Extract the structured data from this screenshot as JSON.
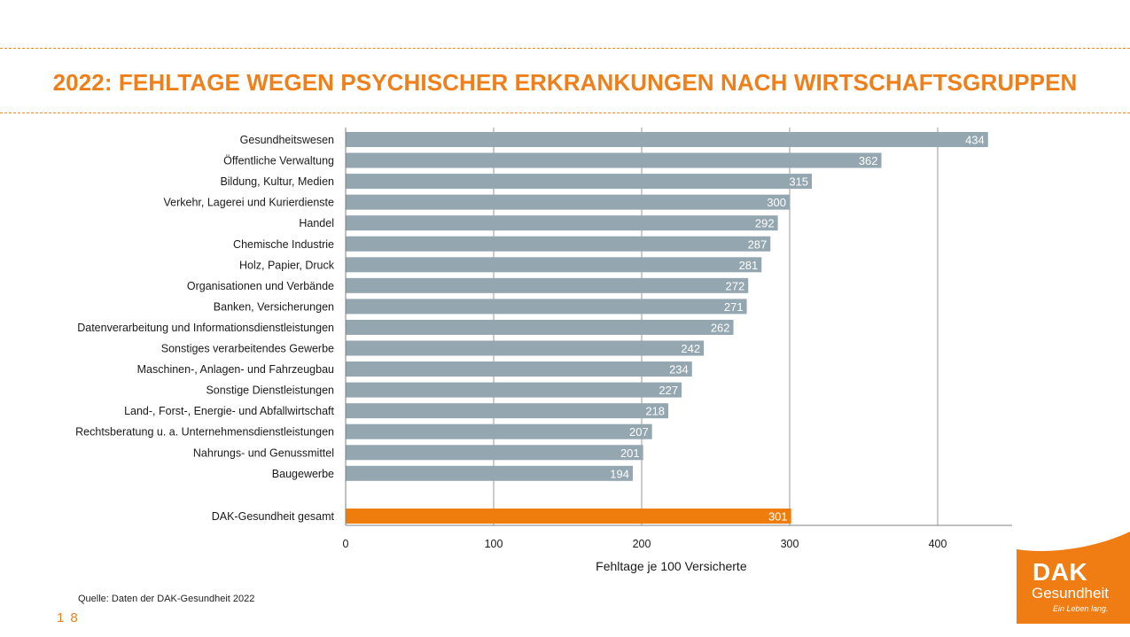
{
  "title": "2022: FEHLTAGE WEGEN PSYCHISCHER ERKRANKUNGEN NACH WIRTSCHAFTSGRUPPEN",
  "source": "Quelle: Daten der DAK-Gesundheit 2022",
  "page_number": "18",
  "logo": {
    "line1": "DAK",
    "line2": "Gesundheit",
    "tagline": "Ein Leben lang.",
    "color": "#f07d14"
  },
  "colors": {
    "accent": "#ee7f1a",
    "bar": "#94a6b0",
    "highlight_bar": "#ef7d0e",
    "grid": "#9a9a9a"
  },
  "chart_data": {
    "type": "bar",
    "orientation": "horizontal",
    "xlabel": "Fehltage je 100 Versicherte",
    "xlim": [
      0,
      450
    ],
    "xticks": [
      0,
      100,
      200,
      300,
      400
    ],
    "grid": "vertical",
    "data_labels": true,
    "categories": [
      "Gesundheitswesen",
      "Öffentliche Verwaltung",
      "Bildung, Kultur, Medien",
      "Verkehr, Lagerei und Kurierdienste",
      "Handel",
      "Chemische Industrie",
      "Holz, Papier, Druck",
      "Organisationen und Verbände",
      "Banken, Versicherungen",
      "Datenverarbeitung und Informationsdienstleistungen",
      "Sonstiges verarbeitendes Gewerbe",
      "Maschinen-, Anlagen- und Fahrzeugbau",
      "Sonstige Dienstleistungen",
      "Land-, Forst-,  Energie- und Abfallwirtschaft",
      "Rechtsberatung u. a. Unternehmensdienstleistungen",
      "Nahrungs- und Genussmittel",
      "Baugewerbe"
    ],
    "values": [
      434,
      362,
      315,
      300,
      292,
      287,
      281,
      272,
      271,
      262,
      242,
      234,
      227,
      218,
      207,
      201,
      194
    ],
    "total": {
      "label": "DAK-Gesundheit gesamt",
      "value": 301
    }
  }
}
